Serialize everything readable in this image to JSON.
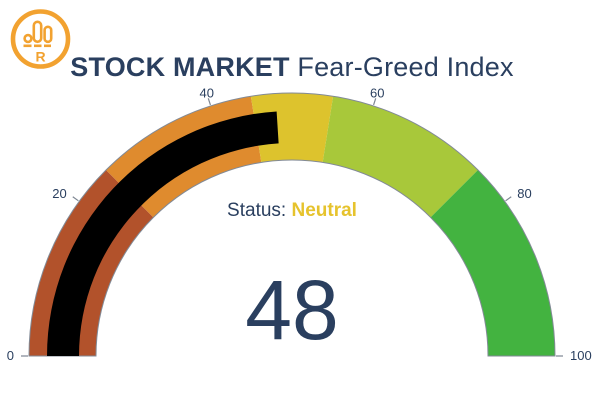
{
  "brand": {
    "letter": "R",
    "color": "#f2a230"
  },
  "header": {
    "title_bold": "STOCK MARKET",
    "title_regular": "Fear-Greed Index",
    "color": "#2a3f5f"
  },
  "status": {
    "label": "Status:",
    "value": "Neutral",
    "label_color": "#2a3f5f",
    "value_color": "#e6c32d"
  },
  "chart_data": {
    "type": "gauge",
    "title": "STOCK MARKET Fear-Greed Index",
    "annotation": "Status: Neutral",
    "value": 48,
    "value_color": "#2a3f5f",
    "axis": {
      "min": 0,
      "max": 100,
      "ticks": [
        0,
        20,
        40,
        60,
        80,
        100
      ],
      "tick_label_color": "#2a3f5f",
      "tick_line_color": "#7d8692"
    },
    "bar": {
      "from": 0,
      "to": 48,
      "color": "#000000"
    },
    "segments": [
      {
        "from": 0,
        "to": 25,
        "color": "#b2522b"
      },
      {
        "from": 25,
        "to": 45,
        "color": "#df8b2e"
      },
      {
        "from": 45,
        "to": 55,
        "color": "#ddc32d"
      },
      {
        "from": 55,
        "to": 75,
        "color": "#a8c83a"
      },
      {
        "from": 75,
        "to": 100,
        "color": "#43b340"
      }
    ],
    "outline_color": "#828a96"
  }
}
